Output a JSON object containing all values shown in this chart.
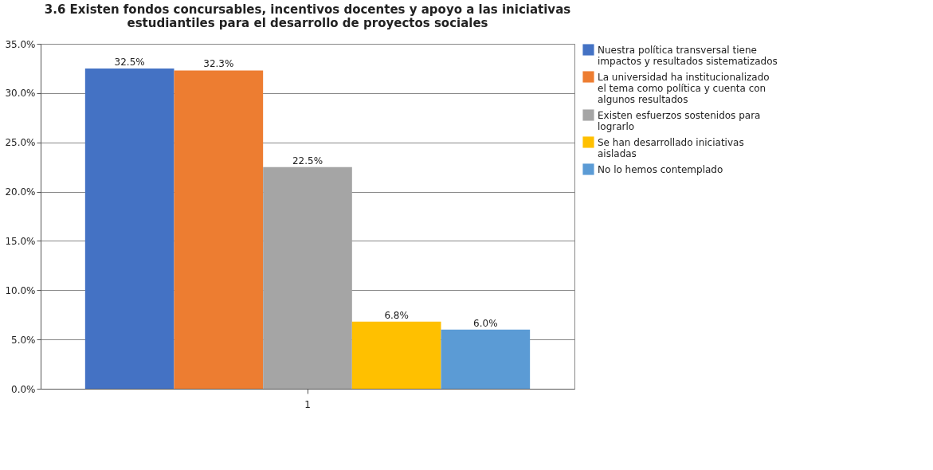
{
  "chart_data": {
    "type": "bar",
    "title": "3.6 Existen fondos concursables, incentivos docentes y apoyo a las iniciativas estudiantiles para el desarrollo de proyectos sociales",
    "categories": [
      "1"
    ],
    "series": [
      {
        "name": "Nuestra política transversal tiene impactos y resultados sistematizados",
        "color": "#4472c4",
        "values": [
          32.5
        ],
        "value_labels": [
          "32.5%"
        ]
      },
      {
        "name": "La universidad ha institucionalizado el tema como política y cuenta con algunos resultados",
        "color": "#ed7d31",
        "values": [
          32.3
        ],
        "value_labels": [
          "32.3%"
        ]
      },
      {
        "name": "Existen esfuerzos sostenidos para lograrlo",
        "color": "#a5a5a5",
        "values": [
          22.5
        ],
        "value_labels": [
          "22.5%"
        ]
      },
      {
        "name": "Se han desarrollado iniciativas aisladas",
        "color": "#ffc000",
        "values": [
          6.8
        ],
        "value_labels": [
          "6.8%"
        ]
      },
      {
        "name": "No lo hemos contemplado",
        "color": "#5b9bd5",
        "values": [
          6.0
        ],
        "value_labels": [
          "6.0%"
        ]
      }
    ],
    "ylim": [
      0,
      35
    ],
    "yticks": [
      {
        "value": 0,
        "label": "0.0%"
      },
      {
        "value": 5,
        "label": "5.0%"
      },
      {
        "value": 10,
        "label": "10.0%"
      },
      {
        "value": 15,
        "label": "15.0%"
      },
      {
        "value": 20,
        "label": "20.0%"
      },
      {
        "value": 25,
        "label": "25.0%"
      },
      {
        "value": 30,
        "label": "30.0%"
      },
      {
        "value": 35,
        "label": "35.0%"
      }
    ],
    "grid": "y",
    "legend": "right"
  }
}
